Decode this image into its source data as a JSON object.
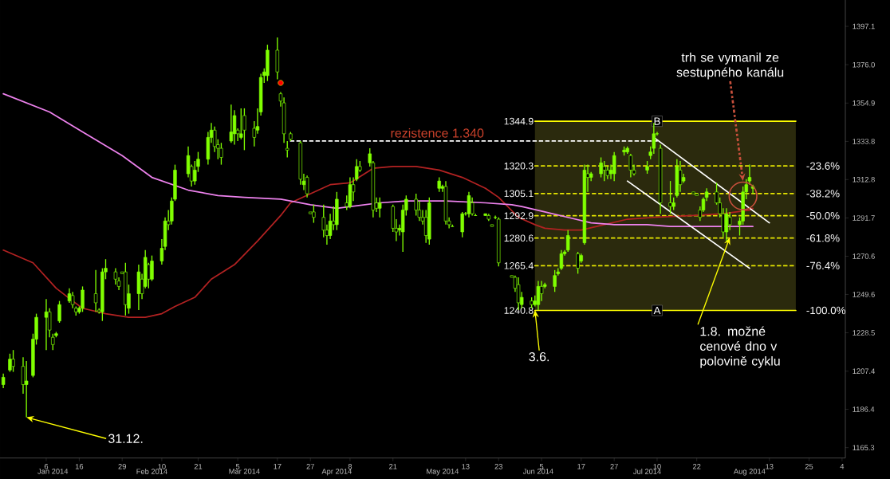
{
  "chart_data": {
    "type": "candlestick",
    "color": "#80ff00",
    "x": [
      "2013-12-24",
      "2013-12-26",
      "2013-12-27",
      "2013-12-30",
      "2013-12-31",
      "2014-01-02",
      "2014-01-03",
      "2014-01-06",
      "2014-01-07",
      "2014-01-08",
      "2014-01-09",
      "2014-01-10",
      "2014-01-13",
      "2014-01-14",
      "2014-01-15",
      "2014-01-16",
      "2014-01-17",
      "2014-01-21",
      "2014-01-22",
      "2014-01-23",
      "2014-01-24",
      "2014-01-27",
      "2014-01-28",
      "2014-01-29",
      "2014-01-30",
      "2014-01-31",
      "2014-02-03",
      "2014-02-04",
      "2014-02-05",
      "2014-02-06",
      "2014-02-07",
      "2014-02-10",
      "2014-02-11",
      "2014-02-12",
      "2014-02-13",
      "2014-02-14",
      "2014-02-18",
      "2014-02-19",
      "2014-02-20",
      "2014-02-21",
      "2014-02-24",
      "2014-02-25",
      "2014-02-26",
      "2014-02-27",
      "2014-02-28",
      "2014-03-03",
      "2014-03-04",
      "2014-03-05",
      "2014-03-06",
      "2014-03-07",
      "2014-03-10",
      "2014-03-11",
      "2014-03-12",
      "2014-03-13",
      "2014-03-14",
      "2014-03-17",
      "2014-03-18",
      "2014-03-19",
      "2014-03-20",
      "2014-03-21",
      "2014-03-24",
      "2014-03-25",
      "2014-03-26",
      "2014-03-27",
      "2014-03-28",
      "2014-03-31",
      "2014-04-01",
      "2014-04-02",
      "2014-04-03",
      "2014-04-04",
      "2014-04-07",
      "2014-04-08",
      "2014-04-09",
      "2014-04-10",
      "2014-04-11",
      "2014-04-14",
      "2014-04-15",
      "2014-04-16",
      "2014-04-17",
      "2014-04-21",
      "2014-04-22",
      "2014-04-23",
      "2014-04-24",
      "2014-04-25",
      "2014-04-28",
      "2014-04-29",
      "2014-04-30",
      "2014-05-01",
      "2014-05-02",
      "2014-05-05",
      "2014-05-06",
      "2014-05-07",
      "2014-05-08",
      "2014-05-09",
      "2014-05-12",
      "2014-05-13",
      "2014-05-14",
      "2014-05-15",
      "2014-05-16",
      "2014-05-19",
      "2014-05-20",
      "2014-05-21",
      "2014-05-22",
      "2014-05-23",
      "2014-05-27",
      "2014-05-28",
      "2014-05-29",
      "2014-05-30",
      "2014-06-02",
      "2014-06-03",
      "2014-06-04",
      "2014-06-05",
      "2014-06-06",
      "2014-06-09",
      "2014-06-10",
      "2014-06-11",
      "2014-06-12",
      "2014-06-13",
      "2014-06-16",
      "2014-06-17",
      "2014-06-18",
      "2014-06-19",
      "2014-06-20",
      "2014-06-23",
      "2014-06-24",
      "2014-06-25",
      "2014-06-26",
      "2014-06-27",
      "2014-06-30",
      "2014-07-01",
      "2014-07-02",
      "2014-07-03",
      "2014-07-07",
      "2014-07-08",
      "2014-07-09",
      "2014-07-10",
      "2014-07-11",
      "2014-07-14",
      "2014-07-15",
      "2014-07-16",
      "2014-07-17",
      "2014-07-18",
      "2014-07-21",
      "2014-07-22",
      "2014-07-23",
      "2014-07-24",
      "2014-07-25",
      "2014-07-28",
      "2014-07-29",
      "2014-07-30",
      "2014-07-31",
      "2014-08-01",
      "2014-08-04",
      "2014-08-05",
      "2014-08-06",
      "2014-08-07",
      "2014-08-08"
    ],
    "ohlc": [
      [
        1200,
        1206,
        1198,
        1204
      ],
      [
        1208,
        1217,
        1207,
        1214
      ],
      [
        1214,
        1219,
        1207,
        1210
      ],
      [
        1210,
        1215,
        1195,
        1200
      ],
      [
        1200,
        1213,
        1182,
        1202
      ],
      [
        1205,
        1228,
        1204,
        1225
      ],
      [
        1225,
        1239,
        1222,
        1237
      ],
      [
        1237,
        1247,
        1219,
        1240
      ],
      [
        1240,
        1242,
        1226,
        1230
      ],
      [
        1226,
        1228,
        1219,
        1222
      ],
      [
        1227,
        1229,
        1226,
        1228
      ],
      [
        1235,
        1246,
        1234,
        1244
      ],
      [
        1246,
        1253,
        1245,
        1250
      ],
      [
        1249,
        1251,
        1242,
        1244
      ],
      [
        1242,
        1243,
        1238,
        1240
      ],
      [
        1240,
        1243,
        1239,
        1242
      ],
      [
        1242,
        1254,
        1240,
        1252
      ],
      [
        1250,
        1263,
        1240,
        1245
      ],
      [
        1241,
        1242,
        1239,
        1240
      ],
      [
        1240,
        1264,
        1235,
        1262
      ],
      [
        1262,
        1269,
        1258,
        1264
      ],
      [
        1262,
        1264,
        1255,
        1258
      ],
      [
        1257,
        1259,
        1252,
        1254
      ],
      [
        1262,
        1262,
        1261,
        1261
      ],
      [
        1262,
        1267,
        1238,
        1244
      ],
      [
        1242,
        1255,
        1239,
        1250
      ],
      [
        1250,
        1266,
        1241,
        1262
      ],
      [
        1258,
        1261,
        1247,
        1250
      ],
      [
        1254,
        1274,
        1253,
        1270
      ],
      [
        1266,
        1267,
        1253,
        1258
      ],
      [
        1258,
        1271,
        1257,
        1268
      ],
      [
        1268,
        1280,
        1266,
        1275
      ],
      [
        1276,
        1292,
        1274,
        1290
      ],
      [
        1290,
        1296,
        1285,
        1288
      ],
      [
        1290,
        1303,
        1288,
        1301
      ],
      [
        1302,
        1321,
        1301,
        1318
      ],
      [
        1316,
        1331,
        1314,
        1326
      ],
      [
        1320,
        1321,
        1309,
        1312
      ],
      [
        1312,
        1323,
        1310,
        1318
      ],
      [
        1320,
        1328,
        1317,
        1324
      ],
      [
        1324,
        1339,
        1321,
        1336
      ],
      [
        1336,
        1344,
        1333,
        1340
      ],
      [
        1340,
        1342,
        1328,
        1331
      ],
      [
        1332,
        1335,
        1324,
        1330
      ],
      [
        1330,
        1333,
        1321,
        1325
      ],
      [
        1334,
        1354,
        1333,
        1339
      ],
      [
        1338,
        1351,
        1332,
        1348
      ],
      [
        1340,
        1341,
        1334,
        1338
      ],
      [
        1336,
        1352,
        1335,
        1338
      ],
      [
        1348,
        1352,
        1329,
        1340
      ],
      [
        1341,
        1345,
        1331,
        1336
      ],
      [
        1340,
        1352,
        1338,
        1342
      ],
      [
        1350,
        1371,
        1348,
        1369
      ],
      [
        1370,
        1374,
        1366,
        1372
      ],
      [
        1370,
        1387,
        1367,
        1384
      ],
      [
        1384,
        1391,
        1368,
        1372
      ],
      [
        1360,
        1361,
        1353,
        1356
      ],
      [
        1355,
        1358,
        1333,
        1338
      ],
      [
        1330,
        1334,
        1325,
        1329
      ],
      [
        1338,
        1339,
        1334,
        1335
      ],
      [
        1333,
        1334,
        1310,
        1313
      ],
      [
        1310,
        1316,
        1307,
        1312
      ],
      [
        1314,
        1315,
        1303,
        1305
      ],
      [
        1295,
        1295,
        1294,
        1294
      ],
      [
        1295,
        1299,
        1289,
        1292
      ],
      [
        1292,
        1299,
        1281,
        1285
      ],
      [
        1285,
        1288,
        1277,
        1282
      ],
      [
        1282,
        1294,
        1280,
        1290
      ],
      [
        1290,
        1298,
        1285,
        1288
      ],
      [
        1288,
        1306,
        1285,
        1302
      ],
      [
        1300,
        1304,
        1296,
        1298
      ],
      [
        1298,
        1314,
        1297,
        1310
      ],
      [
        1310,
        1314,
        1301,
        1306
      ],
      [
        1313,
        1324,
        1312,
        1320
      ],
      [
        1320,
        1323,
        1317,
        1318
      ],
      [
        1322,
        1330,
        1320,
        1327
      ],
      [
        1322,
        1323,
        1292,
        1296
      ],
      [
        1300,
        1303,
        1295,
        1297
      ],
      [
        1297,
        1303,
        1292,
        1300
      ],
      [
        1298,
        1299,
        1284,
        1286
      ],
      [
        1286,
        1291,
        1279,
        1284
      ],
      [
        1285,
        1288,
        1282,
        1286
      ],
      [
        1284,
        1299,
        1273,
        1296
      ],
      [
        1296,
        1304,
        1293,
        1302
      ],
      [
        1302,
        1305,
        1293,
        1296
      ],
      [
        1296,
        1301,
        1290,
        1292
      ],
      [
        1292,
        1296,
        1288,
        1290
      ],
      [
        1292,
        1296,
        1278,
        1282
      ],
      [
        1280,
        1303,
        1277,
        1300
      ],
      [
        1308,
        1314,
        1306,
        1312
      ],
      [
        1308,
        1310,
        1306,
        1309
      ],
      [
        1309,
        1312,
        1288,
        1290
      ],
      [
        1290,
        1292,
        1286,
        1288
      ],
      [
        1287,
        1288,
        1287,
        1287
      ],
      [
        1284,
        1295,
        1281,
        1294
      ],
      [
        1294,
        1295,
        1293,
        1294
      ],
      [
        1294,
        1306,
        1292,
        1304
      ],
      [
        1300,
        1303,
        1293,
        1294
      ],
      [
        1293,
        1294,
        1293,
        1293
      ],
      [
        1293,
        1294,
        1293,
        1294
      ],
      [
        1293,
        1294,
        1290,
        1291
      ],
      [
        1288,
        1288,
        1287,
        1287
      ],
      [
        1292,
        1293,
        1291,
        1292
      ],
      [
        1291,
        1292,
        1265,
        1267
      ],
      [
        1260,
        1260,
        1259,
        1259
      ],
      [
        1259,
        1260,
        1251,
        1253
      ],
      [
        1255,
        1259,
        1241,
        1245
      ],
      [
        1244,
        1251,
        1242,
        1248
      ],
      [
        1246,
        1248,
        1242,
        1244
      ],
      [
        1244,
        1249,
        1243,
        1246
      ],
      [
        1244,
        1257,
        1241,
        1254
      ],
      [
        1254,
        1257,
        1246,
        1250
      ],
      [
        1254,
        1256,
        1253,
        1255
      ],
      [
        1254,
        1263,
        1251,
        1260
      ],
      [
        1261,
        1264,
        1260,
        1262
      ],
      [
        1264,
        1274,
        1263,
        1272
      ],
      [
        1272,
        1274,
        1271,
        1273
      ],
      [
        1274,
        1285,
        1273,
        1282
      ],
      [
        1272,
        1273,
        1261,
        1264
      ],
      [
        1268,
        1272,
        1267,
        1271
      ],
      [
        1278,
        1321,
        1277,
        1318
      ],
      [
        1316,
        1321,
        1306,
        1314
      ],
      [
        1314,
        1317,
        1312,
        1316
      ],
      [
        1316,
        1325,
        1314,
        1322
      ],
      [
        1320,
        1323,
        1312,
        1318
      ],
      [
        1318,
        1320,
        1313,
        1315
      ],
      [
        1316,
        1321,
        1313,
        1318
      ],
      [
        1316,
        1328,
        1312,
        1326
      ],
      [
        1328,
        1331,
        1326,
        1329
      ],
      [
        1328,
        1331,
        1327,
        1330
      ],
      [
        1326,
        1327,
        1314,
        1318
      ],
      [
        1318,
        1321,
        1315,
        1316
      ],
      [
        1318,
        1323,
        1316,
        1320
      ],
      [
        1326,
        1331,
        1324,
        1328
      ],
      [
        1330,
        1344,
        1327,
        1338
      ],
      [
        1338,
        1339,
        1337,
        1338
      ],
      [
        1330,
        1332,
        1294,
        1300
      ],
      [
        1300,
        1312,
        1294,
        1298
      ],
      [
        1298,
        1303,
        1296,
        1300
      ],
      [
        1304,
        1324,
        1303,
        1320
      ],
      [
        1318,
        1323,
        1306,
        1310
      ],
      [
        1312,
        1316,
        1311,
        1314
      ],
      [
        1306,
        1306,
        1305,
        1305
      ],
      [
        1305,
        1305,
        1304,
        1304
      ],
      [
        1296,
        1298,
        1290,
        1292
      ],
      [
        1296,
        1303,
        1295,
        1302
      ],
      [
        1303,
        1308,
        1301,
        1306
      ],
      [
        1306,
        1311,
        1299,
        1300
      ],
      [
        1300,
        1303,
        1292,
        1294
      ],
      [
        1294,
        1297,
        1281,
        1284
      ],
      [
        1284,
        1297,
        1279,
        1294
      ],
      [
        1292,
        1295,
        1285,
        1288
      ],
      [
        1288,
        1292,
        1282,
        1290
      ],
      [
        1290,
        1309,
        1288,
        1306
      ],
      [
        1306,
        1313,
        1302,
        1310
      ],
      [
        1312,
        1321,
        1310,
        1314
      ],
      [
        1308,
        1310,
        1305,
        1309
      ]
    ],
    "series": [
      {
        "type": "line",
        "x": [
          "2014-06-03",
          "2014-08-21"
        ],
        "values": [
          1344.9,
          1344.9
        ],
        "lower": [
          1240.8,
          1240.8
        ],
        "upper": [
          1344.9,
          1344.9
        ],
        "color": "#ffff00",
        "line_style": "solid"
      },
      {
        "type": "line",
        "x": [
          "2014-06-03",
          "2014-08-21"
        ],
        "values": [
          1320.3,
          1320.3
        ],
        "color": "#e6e600",
        "line_style": "dashed"
      },
      {
        "type": "line",
        "x": [
          "2014-06-03",
          "2014-08-21"
        ],
        "values": [
          1305.1,
          1305.1
        ],
        "color": "#e6e600",
        "line_style": "dashed"
      },
      {
        "type": "line",
        "x": [
          "2014-06-03",
          "2014-08-21"
        ],
        "values": [
          1292.9,
          1292.9
        ],
        "color": "#e6e600",
        "line_style": "dashed"
      },
      {
        "type": "line",
        "x": [
          "2014-06-03",
          "2014-08-21"
        ],
        "values": [
          1280.6,
          1280.6
        ],
        "color": "#e6e600",
        "line_style": "dashed"
      },
      {
        "type": "line",
        "x": [
          "2014-06-03",
          "2014-08-21"
        ],
        "values": [
          1265.4,
          1265.4
        ],
        "color": "#e6e600",
        "line_style": "dashed"
      },
      {
        "type": "line",
        "x": [
          "2014-06-03",
          "2014-08-21"
        ],
        "values": [
          1240.8,
          1240.8
        ],
        "color": "#ffff00",
        "line_style": "solid"
      },
      {
        "type": "line",
        "color": "#b22222",
        "x": [
          "2013-12-24",
          "2014-01-02",
          "2014-01-09",
          "2014-01-14",
          "2014-01-17",
          "2014-01-24",
          "2014-01-31",
          "2014-02-05",
          "2014-02-10",
          "2014-02-14",
          "2014-02-20",
          "2014-02-25",
          "2014-03-04",
          "2014-03-11",
          "2014-03-18",
          "2014-03-21",
          "2014-03-27",
          "2014-04-02",
          "2014-04-08",
          "2014-04-15",
          "2014-04-21",
          "2014-04-28",
          "2014-05-05",
          "2014-05-12",
          "2014-05-19",
          "2014-05-23",
          "2014-05-29",
          "2014-06-03",
          "2014-06-06",
          "2014-06-12",
          "2014-06-17",
          "2014-06-24",
          "2014-07-01",
          "2014-07-09",
          "2014-07-21",
          "2014-07-30",
          "2014-08-07",
          "2014-08-08"
        ],
        "values": [
          1274,
          1267,
          1253,
          1246,
          1242,
          1239,
          1237,
          1237,
          1239,
          1243,
          1248,
          1258,
          1266,
          1279,
          1293,
          1300,
          1305,
          1310,
          1311,
          1319,
          1320,
          1320,
          1318,
          1314,
          1308,
          1303,
          1292,
          1288,
          1286,
          1285,
          1285,
          1288,
          1291,
          1292,
          1293,
          1294,
          1296,
          1297
        ]
      },
      {
        "type": "line",
        "color": "#ee82ee",
        "x": [
          "2013-12-24",
          "2014-01-07",
          "2014-01-17",
          "2014-01-29",
          "2014-02-07",
          "2014-02-18",
          "2014-02-27",
          "2014-03-07",
          "2014-03-18",
          "2014-03-27",
          "2014-04-04",
          "2014-04-17",
          "2014-04-25",
          "2014-05-07",
          "2014-05-19",
          "2014-05-27",
          "2014-05-30",
          "2014-06-06",
          "2014-06-13",
          "2014-06-20",
          "2014-06-27",
          "2014-07-07",
          "2014-07-14",
          "2014-07-23",
          "2014-08-08"
        ],
        "values": [
          1360,
          1350,
          1339,
          1326,
          1314,
          1307,
          1304,
          1303,
          1302,
          1299,
          1297,
          1300,
          1301,
          1301,
          1300,
          1299,
          1298,
          1295,
          1292,
          1289,
          1288,
          1288,
          1287,
          1287,
          1287
        ]
      },
      {
        "type": "line",
        "name": "rezistence 1.340",
        "x": [
          "2014-03-21",
          "2014-07-10"
        ],
        "values": [
          1334,
          1334
        ],
        "color": "#ffffff",
        "line_style": "dashed"
      },
      {
        "type": "line",
        "x": [
          "2014-07-09",
          "2014-08-13"
        ],
        "values": [
          1336,
          1289
        ],
        "color": "#ffffff",
        "line_style": "solid"
      },
      {
        "type": "line",
        "x": [
          "2014-07-01",
          "2014-08-07"
        ],
        "values": [
          1312,
          1264
        ],
        "color": "#ffffff",
        "line_style": "solid"
      },
      {
        "type": "scatter",
        "x": [
          "2014-03-18"
        ],
        "values": [
          1366
        ],
        "color": "#ff0000",
        "marker": "circle"
      }
    ],
    "xlim": [
      "2013-12-23",
      "2014-09-05"
    ],
    "xticks": [
      {
        "value": "2014-01-06",
        "label": "6"
      },
      {
        "value": "2014-01-16",
        "label": "16"
      },
      {
        "value": "2014-01-29",
        "label": "29"
      },
      {
        "value": "2014-02-10",
        "label": "10"
      },
      {
        "value": "2014-02-21",
        "label": "21"
      },
      {
        "value": "2014-03-05",
        "label": "5"
      },
      {
        "value": "2014-03-17",
        "label": "17"
      },
      {
        "value": "2014-03-27",
        "label": "27"
      },
      {
        "value": "2014-04-08",
        "label": "8"
      },
      {
        "value": "2014-04-21",
        "label": "21"
      },
      {
        "value": "2014-05-13",
        "label": "13"
      },
      {
        "value": "2014-05-23",
        "label": "23"
      },
      {
        "value": "2014-06-05",
        "label": "5"
      },
      {
        "value": "2014-06-17",
        "label": "17"
      },
      {
        "value": "2014-06-27",
        "label": "27"
      },
      {
        "value": "2014-07-10",
        "label": "10"
      },
      {
        "value": "2014-07-22",
        "label": "22"
      },
      {
        "value": "2014-08-13",
        "label": "13"
      },
      {
        "value": "2014-08-25",
        "label": "25"
      },
      {
        "value": "2014-09-04",
        "label": "4"
      }
    ],
    "x2lim": [
      "2013-12-23",
      "2014-09-05"
    ],
    "x2ticks": [
      {
        "value": "2014-01-08",
        "label": "Jan 2014"
      },
      {
        "value": "2014-02-07",
        "label": "Feb 2014"
      },
      {
        "value": "2014-03-07",
        "label": "Mar 2014"
      },
      {
        "value": "2014-04-04",
        "label": "Apr 2014"
      },
      {
        "value": "2014-05-06",
        "label": "May 2014"
      },
      {
        "value": "2014-06-04",
        "label": "Jun 2014"
      },
      {
        "value": "2014-07-07",
        "label": "Jul 2014"
      },
      {
        "value": "2014-08-07",
        "label": "Aug 2014"
      }
    ],
    "ylim": [
      1159.6,
      1411.6
    ],
    "yticks": [
      1165.3,
      1186.4,
      1207.4,
      1228.5,
      1249.6,
      1270.6,
      1291.7,
      1312.8,
      1333.8,
      1354.9,
      {
        "value": 1376,
        "label": "1376.0"
      },
      1397.1
    ],
    "annotations": [
      {
        "text": "31.12.",
        "x": "2013-12-31",
        "y": 1182
      },
      {
        "text": "3.6.",
        "x": "2014-06-03",
        "y": 1241
      },
      {
        "text": "1.8. možné cenové dno v polovině cyklu",
        "x": "2014-08-01",
        "y": 1281
      },
      {
        "text": "trh se vymanil ze sestupného kanálu",
        "x": "2014-08-05",
        "y": 1312
      },
      {
        "text": "B",
        "x": "2014-07-10",
        "y": 1344.9
      },
      {
        "text": "A",
        "x": "2014-07-10",
        "y": 1240.8
      },
      {
        "text": "1344.9",
        "x": "2014-06-03",
        "y": 1344.9
      },
      {
        "text": "1320.3",
        "x": "2014-06-03",
        "y": 1320.3
      },
      {
        "text": "1305.1",
        "x": "2014-06-03",
        "y": 1305.1
      },
      {
        "text": "1292.9",
        "x": "2014-06-03",
        "y": 1292.9
      },
      {
        "text": "1280.6",
        "x": "2014-06-03",
        "y": 1280.6
      },
      {
        "text": "1265.4",
        "x": "2014-06-03",
        "y": 1265.4
      },
      {
        "text": "1240.8",
        "x": "2014-06-03",
        "y": 1240.8
      },
      {
        "text": "-23.6%",
        "x": "2014-08-21",
        "y": 1320.3
      },
      {
        "text": "-38.2%",
        "x": "2014-08-21",
        "y": 1305.1
      },
      {
        "text": "-50.0%",
        "x": "2014-08-21",
        "y": 1292.9
      },
      {
        "text": "-61.8%",
        "x": "2014-08-21",
        "y": 1280.6
      },
      {
        "text": "-76.4%",
        "x": "2014-08-21",
        "y": 1265.4
      },
      {
        "text": "-100.0%",
        "x": "2014-08-21",
        "y": 1240.8
      }
    ]
  }
}
